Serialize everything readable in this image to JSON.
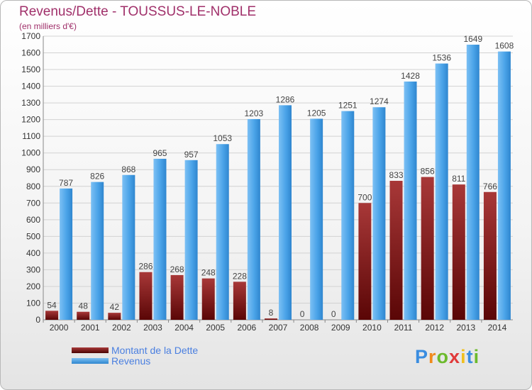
{
  "header": {
    "title": "Revenus/Dette - TOUSSUS-LE-NOBLE",
    "subtitle": "(en milliers d'€)"
  },
  "chart_data": {
    "type": "bar",
    "categories": [
      "2000",
      "2001",
      "2002",
      "2003",
      "2004",
      "2005",
      "2006",
      "2007",
      "2008",
      "2009",
      "2010",
      "2011",
      "2012",
      "2013",
      "2014"
    ],
    "series": [
      {
        "name": "Montant de la Dette",
        "color": "#7a1414",
        "values": [
          54,
          48,
          42,
          286,
          268,
          248,
          228,
          8,
          0,
          0,
          700,
          833,
          856,
          811,
          766
        ]
      },
      {
        "name": "Revenus",
        "color": "#4aa3e8",
        "values": [
          787,
          826,
          868,
          965,
          957,
          1053,
          1203,
          1286,
          1205,
          1251,
          1274,
          1428,
          1536,
          1649,
          1608
        ]
      }
    ],
    "ylim": [
      0,
      1700
    ],
    "yticks": [
      0,
      100,
      200,
      300,
      400,
      500,
      600,
      700,
      800,
      900,
      1000,
      1100,
      1200,
      1300,
      1400,
      1500,
      1600,
      1700
    ],
    "grid": true,
    "legend_position": "bottom-left"
  },
  "legend": {
    "items": [
      {
        "label": "Montant de la Dette",
        "color": "#7a1414"
      },
      {
        "label": "Revenus",
        "color": "#4aa3e8"
      }
    ]
  },
  "logo": {
    "letters": [
      "P",
      "r",
      "o",
      "x",
      "i",
      "t",
      "i"
    ],
    "colors": [
      "#3a8de0",
      "#f08a1c",
      "#6cba2c",
      "#e03a3a",
      "#f0c020",
      "#3a8de0",
      "#6cba2c"
    ]
  }
}
